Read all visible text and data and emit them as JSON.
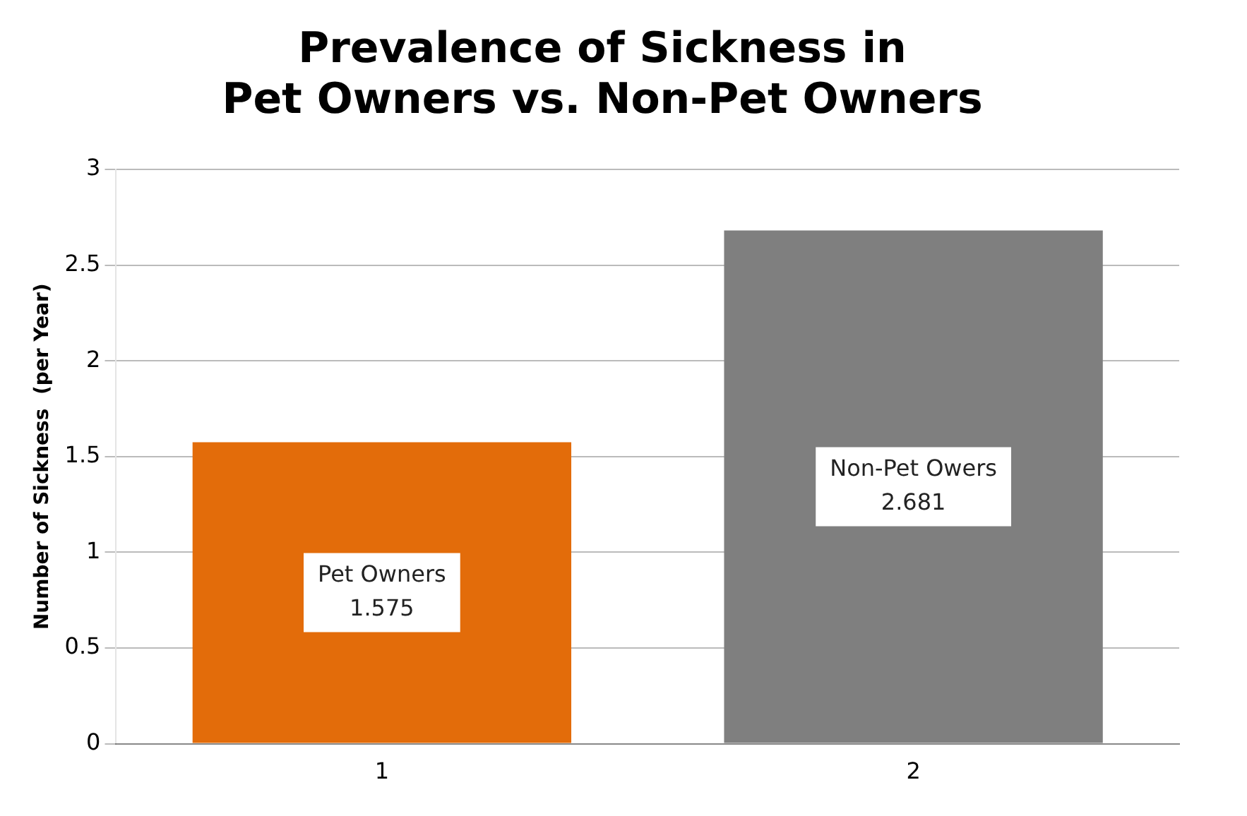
{
  "chart_data": {
    "type": "bar",
    "title": "Prevalence of Sickness in\nPet Owners vs. Non-Pet Owners",
    "ylabel": "Number of Sickness  (per Year)",
    "categories": [
      "1",
      "2"
    ],
    "values": [
      1.575,
      2.681
    ],
    "colors": [
      "#e36c0a",
      "#7f7f7f"
    ],
    "value_labels": [
      "Pet Owners\n1.575",
      "Non-Pet Owers\n2.681"
    ],
    "ylim": [
      0,
      3
    ],
    "yticks": [
      0,
      0.5,
      1,
      1.5,
      2,
      2.5,
      3
    ],
    "grid": "y"
  }
}
